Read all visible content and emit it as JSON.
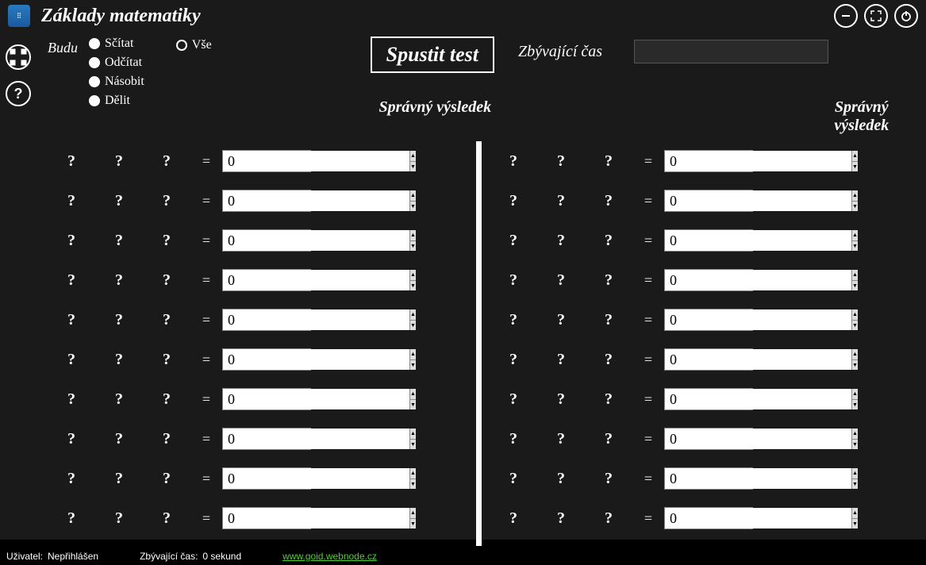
{
  "app": {
    "title": "Základy matematiky"
  },
  "budu": {
    "label": "Budu",
    "ops": [
      {
        "key": "scitat",
        "label": "Sčítat"
      },
      {
        "key": "odcitat",
        "label": "Odčítat"
      },
      {
        "key": "nasobit",
        "label": "Násobit"
      },
      {
        "key": "delit",
        "label": "Dělit"
      }
    ],
    "vse": {
      "key": "vse",
      "label": "Vše"
    }
  },
  "start_button": "Spustit test",
  "time_label": "Zbývající čas",
  "time_value": "",
  "col_heading": "Správný výsledek",
  "placeholder": "?",
  "equals": "=",
  "row_count": 10,
  "default_value": "0",
  "left": [
    {
      "a": "?",
      "op": "?",
      "b": "?",
      "ans": "0",
      "res": "?"
    },
    {
      "a": "?",
      "op": "?",
      "b": "?",
      "ans": "0",
      "res": "?"
    },
    {
      "a": "?",
      "op": "?",
      "b": "?",
      "ans": "0",
      "res": "?"
    },
    {
      "a": "?",
      "op": "?",
      "b": "?",
      "ans": "0",
      "res": "?"
    },
    {
      "a": "?",
      "op": "?",
      "b": "?",
      "ans": "0",
      "res": "?"
    },
    {
      "a": "?",
      "op": "?",
      "b": "?",
      "ans": "0",
      "res": "?"
    },
    {
      "a": "?",
      "op": "?",
      "b": "?",
      "ans": "0",
      "res": "?"
    },
    {
      "a": "?",
      "op": "?",
      "b": "?",
      "ans": "0",
      "res": "?"
    },
    {
      "a": "?",
      "op": "?",
      "b": "?",
      "ans": "0",
      "res": "?"
    },
    {
      "a": "?",
      "op": "?",
      "b": "?",
      "ans": "0",
      "res": "?"
    }
  ],
  "right": [
    {
      "a": "?",
      "op": "?",
      "b": "?",
      "ans": "0",
      "res": "?"
    },
    {
      "a": "?",
      "op": "?",
      "b": "?",
      "ans": "0",
      "res": "?"
    },
    {
      "a": "?",
      "op": "?",
      "b": "?",
      "ans": "0",
      "res": "?"
    },
    {
      "a": "?",
      "op": "?",
      "b": "?",
      "ans": "0",
      "res": "?"
    },
    {
      "a": "?",
      "op": "?",
      "b": "?",
      "ans": "0",
      "res": "?"
    },
    {
      "a": "?",
      "op": "?",
      "b": "?",
      "ans": "0",
      "res": "?"
    },
    {
      "a": "?",
      "op": "?",
      "b": "?",
      "ans": "0",
      "res": "?"
    },
    {
      "a": "?",
      "op": "?",
      "b": "?",
      "ans": "0",
      "res": "?"
    },
    {
      "a": "?",
      "op": "?",
      "b": "?",
      "ans": "0",
      "res": "?"
    },
    {
      "a": "?",
      "op": "?",
      "b": "?",
      "ans": "0",
      "res": "?"
    }
  ],
  "status": {
    "user_label": "Uživatel:",
    "user_value": "Nepřihlášen",
    "time_label": "Zbývající čas:",
    "time_value": "0 sekund",
    "link": "www.goid.webnode.cz"
  },
  "colors": {
    "bg": "#1a1a1a",
    "text": "#ffffff",
    "input_bg": "#ffffff",
    "input_text": "#000000",
    "link": "#4fd032"
  }
}
